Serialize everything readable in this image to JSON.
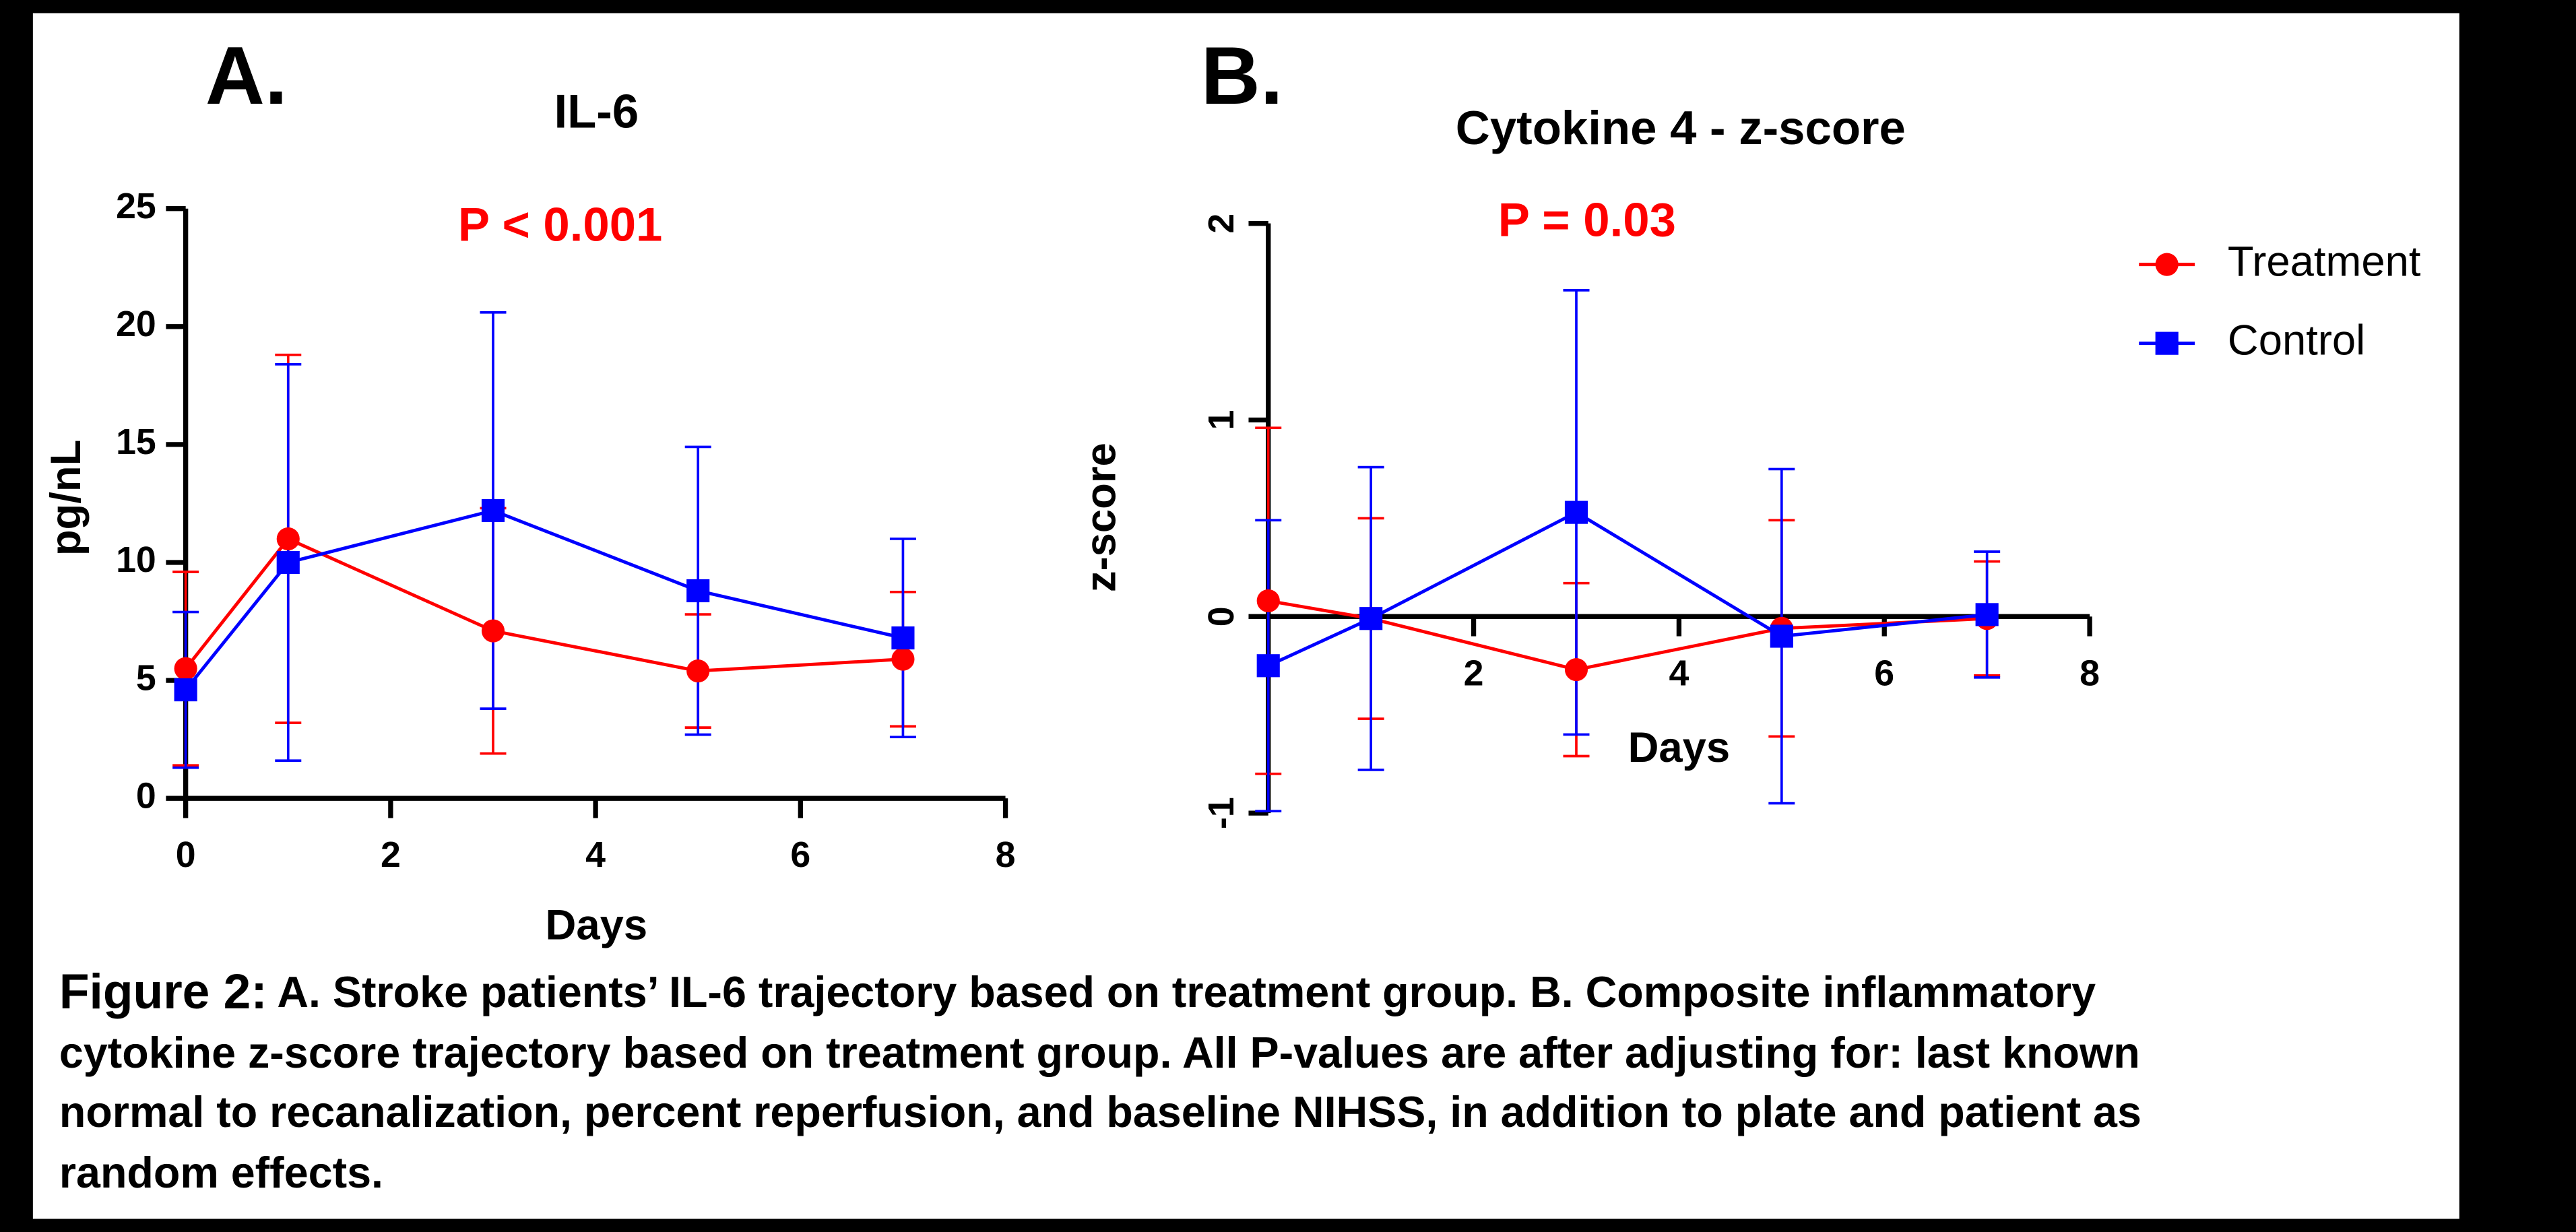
{
  "chart_data": [
    {
      "type": "line",
      "panel_label": "A.",
      "title": "IL-6",
      "annotation": "P < 0.001",
      "x_label": "Days",
      "y_label": "pg/nL",
      "x": [
        0,
        1,
        3,
        5,
        7
      ],
      "series": [
        {
          "name": "Treatment",
          "color": "#ff0000",
          "marker": "circle",
          "values": [
            5.5,
            11.0,
            7.1,
            5.4,
            5.9
          ],
          "errors": [
            4.1,
            7.8,
            5.2,
            2.4,
            2.85
          ]
        },
        {
          "name": "Control",
          "color": "#0000ff",
          "marker": "square",
          "values": [
            4.6,
            10.0,
            12.2,
            8.8,
            6.8
          ],
          "errors": [
            3.3,
            8.4,
            8.4,
            6.1,
            4.2
          ]
        }
      ],
      "xlim": [
        0,
        8
      ],
      "xticks": [
        0,
        2,
        4,
        6,
        8
      ],
      "ylim": [
        0,
        25
      ],
      "yticks": [
        0,
        5,
        10,
        15,
        20,
        25
      ]
    },
    {
      "type": "line",
      "panel_label": "B.",
      "title": "Cytokine 4 - z-score",
      "annotation": "P = 0.03",
      "x_label": "Days",
      "y_label": "z-score",
      "x": [
        0,
        1,
        3,
        5,
        7
      ],
      "series": [
        {
          "name": "Treatment",
          "color": "#ff0000",
          "marker": "circle",
          "values": [
            0.08,
            -0.01,
            -0.27,
            -0.06,
            -0.01
          ],
          "errors": [
            0.88,
            0.51,
            0.44,
            0.55,
            0.29
          ]
        },
        {
          "name": "Control",
          "color": "#0000ff",
          "marker": "square",
          "values": [
            -0.25,
            -0.01,
            0.53,
            -0.1,
            0.01
          ],
          "errors": [
            0.74,
            0.77,
            1.13,
            0.85,
            0.32
          ]
        }
      ],
      "xlim": [
        0,
        8
      ],
      "xticks": [
        2,
        4,
        6,
        8
      ],
      "ylim": [
        -1,
        2
      ],
      "yticks": [
        -1,
        0,
        1,
        2
      ],
      "legend": "right"
    }
  ],
  "caption": {
    "label": "Figure 2:",
    "lines": [
      "A. Stroke patients’ IL-6 trajectory based on treatment group. B. Composite inflammatory",
      "cytokine z-score trajectory based on treatment group. All P-values are after adjusting for: last known",
      "normal to recanalization, percent reperfusion, and baseline NIHSS, in addition to plate and patient as",
      "random effects."
    ]
  }
}
